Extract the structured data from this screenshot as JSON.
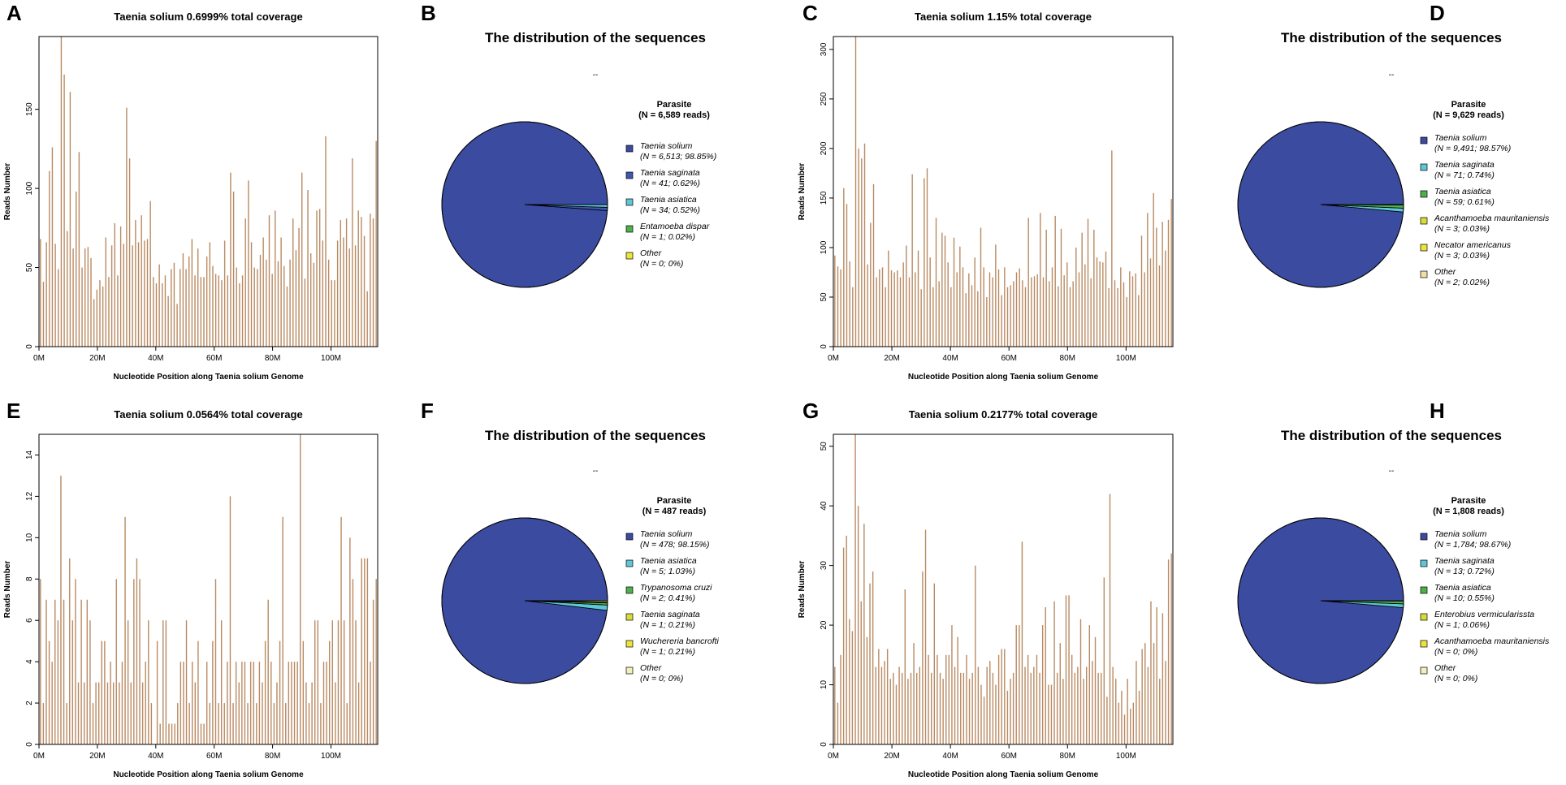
{
  "colors": {
    "bar": "#b98a62",
    "axis": "#000000"
  },
  "chart_data": [
    {
      "letter": "A",
      "type": "bar",
      "title": "Taenia solium 0.6999% total coverage",
      "ylabel": "Reads Number",
      "xlabel": "Nucleotide Position along  Taenia solium  Genome",
      "xlim": [
        0,
        116
      ],
      "ylim": [
        0,
        196
      ],
      "xticks": [
        0,
        20,
        40,
        60,
        80,
        100
      ],
      "xtick_labels": [
        "0M",
        "20M",
        "40M",
        "60M",
        "80M",
        "100M"
      ],
      "yticks": [
        0,
        50,
        100,
        150
      ],
      "yticks_labels": [
        "0",
        "50",
        "100",
        "150"
      ],
      "values": [
        68,
        41,
        66,
        111,
        126,
        65,
        49,
        196,
        172,
        73,
        161,
        62,
        98,
        123,
        50,
        62,
        63,
        56,
        30,
        36,
        42,
        38,
        69,
        44,
        64,
        78,
        45,
        76,
        65,
        151,
        119,
        64,
        80,
        66,
        83,
        67,
        68,
        92,
        44,
        40,
        52,
        40,
        45,
        32,
        49,
        53,
        27,
        49,
        59,
        49,
        57,
        68,
        45,
        62,
        44,
        44,
        57,
        66,
        51,
        46,
        45,
        42,
        67,
        45,
        110,
        98,
        50,
        40,
        45,
        81,
        105,
        66,
        50,
        49,
        58,
        69,
        55,
        83,
        46,
        86,
        54,
        69,
        51,
        38,
        55,
        81,
        61,
        75,
        110,
        43,
        99,
        59,
        53,
        86,
        87,
        67,
        133,
        55,
        42,
        42,
        67,
        80,
        69,
        81,
        62,
        119,
        64,
        86,
        82,
        70,
        35,
        84,
        81,
        130
      ]
    },
    {
      "letter": "B",
      "type": "pie",
      "title": "The distribution of the sequences",
      "subtitle": "--",
      "legend_title": "Parasite",
      "legend_total": "(N = 6,589 reads)",
      "slices": [
        {
          "name": "Taenia solium",
          "stat": "(N = 6,513; 98.85%)",
          "value": 98.85,
          "color": "#3a4ba0"
        },
        {
          "name": "Taenia saginata",
          "stat": "(N = 41; 0.62%)",
          "value": 0.62,
          "color": "#3e58b0"
        },
        {
          "name": "Taenia asiatica",
          "stat": "(N = 34; 0.52%)",
          "value": 0.52,
          "color": "#5fc6d6"
        },
        {
          "name": "Entamoeba dispar",
          "stat": "(N = 1; 0.02%)",
          "value": 0.02,
          "color": "#4db04a"
        },
        {
          "name": "Other",
          "stat": "(N = 0; 0%)",
          "value": 0,
          "color": "#ede43a"
        }
      ]
    },
    {
      "letter": "C",
      "type": "bar",
      "title": "Taenia solium 1.15% total coverage",
      "ylabel": "Reads Number",
      "xlabel": "Nucleotide Position along  Taenia solium  Genome",
      "xlim": [
        0,
        116
      ],
      "ylim": [
        0,
        313
      ],
      "xticks": [
        0,
        20,
        40,
        60,
        80,
        100
      ],
      "xtick_labels": [
        "0M",
        "20M",
        "40M",
        "60M",
        "80M",
        "100M"
      ],
      "yticks": [
        0,
        50,
        100,
        150,
        200,
        250,
        300
      ],
      "yticks_labels": [
        "0",
        "50",
        "100",
        "150",
        "200",
        "250",
        "300"
      ],
      "values": [
        92,
        81,
        78,
        160,
        144,
        86,
        60,
        313,
        200,
        190,
        205,
        83,
        125,
        164,
        70,
        78,
        80,
        60,
        97,
        77,
        75,
        77,
        70,
        85,
        102,
        70,
        174,
        75,
        97,
        58,
        170,
        180,
        90,
        60,
        130,
        66,
        115,
        112,
        85,
        60,
        110,
        75,
        101,
        80,
        54,
        74,
        62,
        90,
        56,
        120,
        80,
        50,
        75,
        70,
        103,
        78,
        52,
        80,
        60,
        62,
        66,
        75,
        79,
        67,
        60,
        130,
        70,
        71,
        73,
        135,
        70,
        118,
        66,
        80,
        132,
        61,
        119,
        72,
        85,
        60,
        66,
        100,
        75,
        115,
        83,
        129,
        69,
        118,
        90,
        86,
        85,
        96,
        59,
        198,
        67,
        59,
        80,
        65,
        50,
        76,
        71,
        74,
        52,
        112,
        75,
        135,
        89,
        155,
        120,
        82,
        126,
        97,
        128,
        149
      ]
    },
    {
      "letter": "D",
      "type": "pie",
      "title": "The distribution of the sequences",
      "subtitle": "--",
      "legend_title": "Parasite",
      "legend_total": "(N = 9,629 reads)",
      "slices": [
        {
          "name": "Taenia solium",
          "stat": "(N = 9,491; 98.57%)",
          "value": 98.57,
          "color": "#3a4ba0"
        },
        {
          "name": "Taenia saginata",
          "stat": "(N = 71; 0.74%)",
          "value": 0.74,
          "color": "#5fc6d6"
        },
        {
          "name": "Taenia asiatica",
          "stat": "(N = 59; 0.61%)",
          "value": 0.61,
          "color": "#4db04a"
        },
        {
          "name": "Acanthamoeba mauritaniensis",
          "stat": "(N = 3; 0.03%)",
          "value": 0.03,
          "color": "#d7dc3a"
        },
        {
          "name": "Necator americanus",
          "stat": "(N = 3; 0.03%)",
          "value": 0.03,
          "color": "#ede43a"
        },
        {
          "name": "Other",
          "stat": "(N = 2; 0.02%)",
          "value": 0.02,
          "color": "#f2dfa6"
        }
      ]
    },
    {
      "letter": "E",
      "type": "bar",
      "title": "Taenia solium 0.0564% total coverage",
      "ylabel": "Reads Number",
      "xlabel": "Nucleotide Position along  Taenia solium  Genome",
      "xlim": [
        0,
        116
      ],
      "ylim": [
        0,
        15
      ],
      "xticks": [
        0,
        20,
        40,
        60,
        80,
        100
      ],
      "xtick_labels": [
        "0M",
        "20M",
        "40M",
        "60M",
        "80M",
        "100M"
      ],
      "yticks": [
        0,
        2,
        4,
        6,
        8,
        10,
        12,
        14
      ],
      "yticks_labels": [
        "0",
        "2",
        "4",
        "6",
        "8",
        "10",
        "12",
        "14"
      ],
      "values": [
        8,
        2,
        7,
        5,
        4,
        7,
        6,
        13,
        7,
        2,
        9,
        6,
        8,
        3,
        7,
        3,
        7,
        6,
        2,
        3,
        3,
        5,
        5,
        3,
        4,
        3,
        8,
        3,
        4,
        11,
        6,
        3,
        8,
        9,
        8,
        3,
        4,
        6,
        2,
        0,
        5,
        1,
        6,
        6,
        1,
        1,
        1,
        2,
        4,
        4,
        6,
        2,
        4,
        3,
        5,
        1,
        1,
        4,
        2,
        5,
        8,
        2,
        6,
        2,
        4,
        12,
        2,
        4,
        3,
        4,
        4,
        2,
        4,
        4,
        2,
        4,
        3,
        5,
        7,
        4,
        2,
        3,
        5,
        11,
        2,
        4,
        4,
        4,
        4,
        15,
        5,
        3,
        2,
        3,
        6,
        6,
        2,
        4,
        4,
        5,
        6,
        3,
        6,
        11,
        6,
        2,
        10,
        8,
        6,
        3,
        9,
        9,
        9,
        4,
        7,
        8
      ]
    },
    {
      "letter": "F",
      "type": "pie",
      "title": "The distribution of the sequences",
      "subtitle": "--",
      "legend_title": "Parasite",
      "legend_total": "(N = 487 reads)",
      "slices": [
        {
          "name": "Taenia solium",
          "stat": "(N = 478; 98.15%)",
          "value": 98.15,
          "color": "#3a4ba0"
        },
        {
          "name": "Taenia asiatica",
          "stat": "(N = 5; 1.03%)",
          "value": 1.03,
          "color": "#5fc6d6"
        },
        {
          "name": "Trypanosoma cruzi",
          "stat": "(N = 2; 0.41%)",
          "value": 0.41,
          "color": "#4db04a"
        },
        {
          "name": "Taenia saginata",
          "stat": "(N = 1; 0.21%)",
          "value": 0.21,
          "color": "#d7dc3a"
        },
        {
          "name": "Wuchereria bancrofti",
          "stat": "(N = 1; 0.21%)",
          "value": 0.21,
          "color": "#ede43a"
        },
        {
          "name": "Other",
          "stat": "(N = 0; 0%)",
          "value": 0,
          "color": "#f2efbd"
        }
      ]
    },
    {
      "letter": "G",
      "type": "bar",
      "title": "Taenia solium 0.2177% total coverage",
      "ylabel": "Reads Number",
      "xlabel": "Nucleotide Position along  Taenia solium  Genome",
      "xlim": [
        0,
        116
      ],
      "ylim": [
        0,
        52
      ],
      "xticks": [
        0,
        20,
        40,
        60,
        80,
        100
      ],
      "xtick_labels": [
        "0M",
        "20M",
        "40M",
        "60M",
        "80M",
        "100M"
      ],
      "yticks": [
        0,
        10,
        20,
        30,
        40,
        50
      ],
      "yticks_labels": [
        "0",
        "10",
        "20",
        "30",
        "40",
        "50"
      ],
      "values": [
        13,
        7,
        15,
        33,
        35,
        21,
        19,
        52,
        40,
        24,
        37,
        18,
        27,
        29,
        13,
        16,
        13,
        14,
        16,
        11,
        12,
        10,
        13,
        12,
        26,
        11,
        12,
        17,
        12,
        13,
        29,
        36,
        15,
        12,
        27,
        15,
        12,
        11,
        15,
        15,
        20,
        13,
        18,
        12,
        12,
        15,
        11,
        12,
        30,
        13,
        10,
        8,
        13,
        14,
        12,
        10,
        15,
        16,
        16,
        9,
        11,
        12,
        20,
        20,
        34,
        13,
        15,
        12,
        13,
        15,
        12,
        20,
        23,
        10,
        10,
        24,
        12,
        17,
        11,
        25,
        25,
        15,
        12,
        13,
        21,
        11,
        13,
        20,
        14,
        18,
        12,
        12,
        28,
        8,
        42,
        13,
        11,
        7,
        9,
        5,
        11,
        6,
        7,
        14,
        9,
        16,
        17,
        13,
        24,
        17,
        23,
        11,
        22,
        14,
        31,
        32
      ]
    },
    {
      "letter": "H",
      "type": "pie",
      "title": "The distribution of the sequences",
      "subtitle": "--",
      "legend_title": "Parasite",
      "legend_total": "(N = 1,808 reads)",
      "slices": [
        {
          "name": "Taenia solium",
          "stat": "(N = 1,784; 98.67%)",
          "value": 98.67,
          "color": "#3a4ba0"
        },
        {
          "name": "Taenia saginata",
          "stat": "(N = 13; 0.72%)",
          "value": 0.72,
          "color": "#5fc6d6"
        },
        {
          "name": "Taenia asiatica",
          "stat": "(N = 10; 0.55%)",
          "value": 0.55,
          "color": "#4db04a"
        },
        {
          "name": "Enterobius vermicularissta",
          "stat": "(N = 1; 0.06%)",
          "value": 0.06,
          "color": "#d7dc3a"
        },
        {
          "name": "Acanthamoeba mauritaniensis",
          "stat": "(N = 0; 0%)",
          "value": 0,
          "color": "#ede43a"
        },
        {
          "name": "Other",
          "stat": "(N = 0; 0%)",
          "value": 0,
          "color": "#f2efbd"
        }
      ]
    }
  ]
}
